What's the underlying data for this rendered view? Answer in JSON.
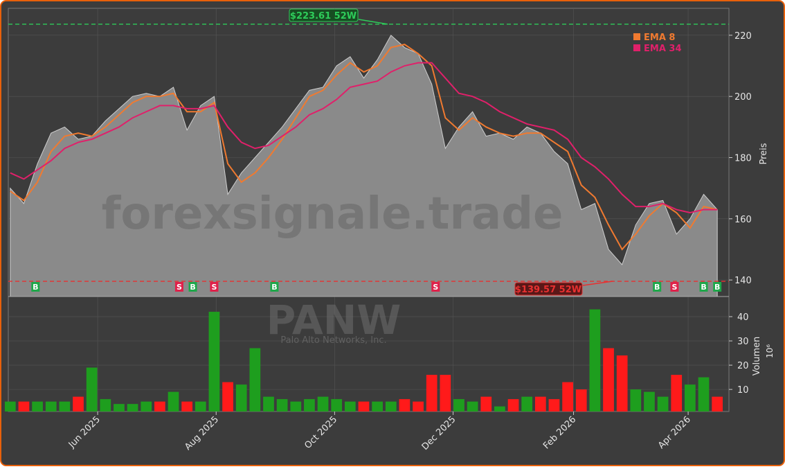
{
  "chart_data": {
    "type": "area",
    "watermark": "forexsignale.trade",
    "symbol": "PANW",
    "company": "Palo Alto Networks, Inc.",
    "ylabel": "Preis",
    "area_color": "#8a8a8a",
    "grid": true,
    "x": [
      "2025-04-17",
      "2025-04-24",
      "2025-05-01",
      "2025-05-08",
      "2025-05-15",
      "2025-05-22",
      "2025-05-29",
      "2025-06-05",
      "2025-06-12",
      "2025-06-19",
      "2025-06-26",
      "2025-07-03",
      "2025-07-10",
      "2025-07-17",
      "2025-07-24",
      "2025-07-31",
      "2025-08-07",
      "2025-08-14",
      "2025-08-21",
      "2025-08-28",
      "2025-09-04",
      "2025-09-11",
      "2025-09-18",
      "2025-09-25",
      "2025-10-02",
      "2025-10-09",
      "2025-10-16",
      "2025-10-23",
      "2025-10-30",
      "2025-11-06",
      "2025-11-13",
      "2025-11-20",
      "2025-11-27",
      "2025-12-04",
      "2025-12-11",
      "2025-12-18",
      "2025-12-25",
      "2026-01-01",
      "2026-01-08",
      "2026-01-15",
      "2026-01-22",
      "2026-01-29",
      "2026-02-05",
      "2026-02-12",
      "2026-02-19",
      "2026-02-26",
      "2026-03-05",
      "2026-03-12",
      "2026-03-19",
      "2026-03-26",
      "2026-04-02",
      "2026-04-09",
      "2026-04-16"
    ],
    "values": [
      170,
      165,
      178,
      188,
      190,
      186,
      187,
      192,
      196,
      200,
      201,
      200,
      203,
      189,
      197,
      200,
      168,
      175,
      180,
      185,
      190,
      196,
      202,
      203,
      210,
      213,
      206,
      212,
      220,
      216,
      214,
      204,
      183,
      190,
      195,
      187,
      188,
      186,
      190,
      188,
      182,
      178,
      163,
      165,
      150,
      145,
      158,
      165,
      166,
      155,
      160,
      168,
      163
    ],
    "series": [
      {
        "name": "EMA 8",
        "color": "#f07a30",
        "values": [
          169,
          166,
          172,
          182,
          187,
          188,
          187,
          190,
          194,
          198,
          200,
          200,
          201,
          195,
          195,
          198,
          178,
          172,
          175,
          180,
          186,
          193,
          200,
          202,
          207,
          211,
          208,
          210,
          216,
          217,
          214,
          210,
          193,
          189,
          193,
          190,
          188,
          187,
          188,
          188,
          185,
          182,
          171,
          167,
          158,
          150,
          155,
          161,
          165,
          162,
          157,
          164,
          163
        ]
      },
      {
        "name": "EMA 34",
        "color": "#e0206a",
        "values": [
          175,
          173,
          176,
          179,
          183,
          185,
          186,
          188,
          190,
          193,
          195,
          197,
          197,
          196,
          196,
          197,
          190,
          185,
          183,
          184,
          187,
          190,
          194,
          196,
          199,
          203,
          204,
          205,
          208,
          210,
          211,
          211,
          206,
          201,
          200,
          198,
          195,
          193,
          191,
          190,
          189,
          186,
          180,
          177,
          173,
          168,
          164,
          164,
          165,
          163,
          162,
          163,
          163
        ]
      }
    ],
    "xlim": [
      "2025-04-16",
      "2026-04-22"
    ],
    "xticks": [
      {
        "value": "2025-06-01",
        "label": "Jun 2025"
      },
      {
        "value": "2025-08-01",
        "label": "Aug 2025"
      },
      {
        "value": "2025-10-01",
        "label": "Oct 2025"
      },
      {
        "value": "2025-12-01",
        "label": "Dec 2025"
      },
      {
        "value": "2026-02-01",
        "label": "Feb 2026"
      },
      {
        "value": "2026-04-01",
        "label": "Apr 2026"
      }
    ],
    "ylim": [
      134.6,
      228.8
    ],
    "yticks": [
      140,
      160,
      180,
      200,
      220
    ],
    "high_52w": {
      "value": 223.61,
      "label": "$223.61 52W",
      "color": "#2ecc5a"
    },
    "low_52w": {
      "value": 139.57,
      "label": "$139.57 52W",
      "color": "#e83030"
    },
    "signals": [
      {
        "date": "2025-04-30",
        "label": "B"
      },
      {
        "date": "2025-07-13",
        "label": "S"
      },
      {
        "date": "2025-07-20",
        "label": "B"
      },
      {
        "date": "2025-07-31",
        "label": "S"
      },
      {
        "date": "2025-08-31",
        "label": "B"
      },
      {
        "date": "2025-11-22",
        "label": "S"
      },
      {
        "date": "2026-03-16",
        "label": "B"
      },
      {
        "date": "2026-03-25",
        "label": "S"
      },
      {
        "date": "2026-04-09",
        "label": "B"
      },
      {
        "date": "2026-04-16",
        "label": "B"
      }
    ],
    "volume": {
      "ylabel": "Volumen",
      "unit": "10⁶",
      "up_color": "#1e9e1e",
      "down_color": "#ff1a1a",
      "values": [
        5,
        5,
        5,
        5,
        5,
        7,
        19,
        6,
        4,
        4,
        5,
        5,
        9,
        5,
        5,
        42,
        13,
        12,
        27,
        7,
        6,
        5,
        6,
        7,
        6,
        5,
        5,
        5,
        5,
        6,
        5,
        16,
        16,
        6,
        5,
        7,
        3,
        6,
        7,
        7,
        6,
        13,
        10,
        43,
        27,
        24,
        10,
        9,
        7,
        16,
        12,
        15,
        7
      ],
      "ylim": [
        0.9,
        48.3
      ],
      "yticks": [
        10,
        20,
        30,
        40
      ]
    }
  }
}
